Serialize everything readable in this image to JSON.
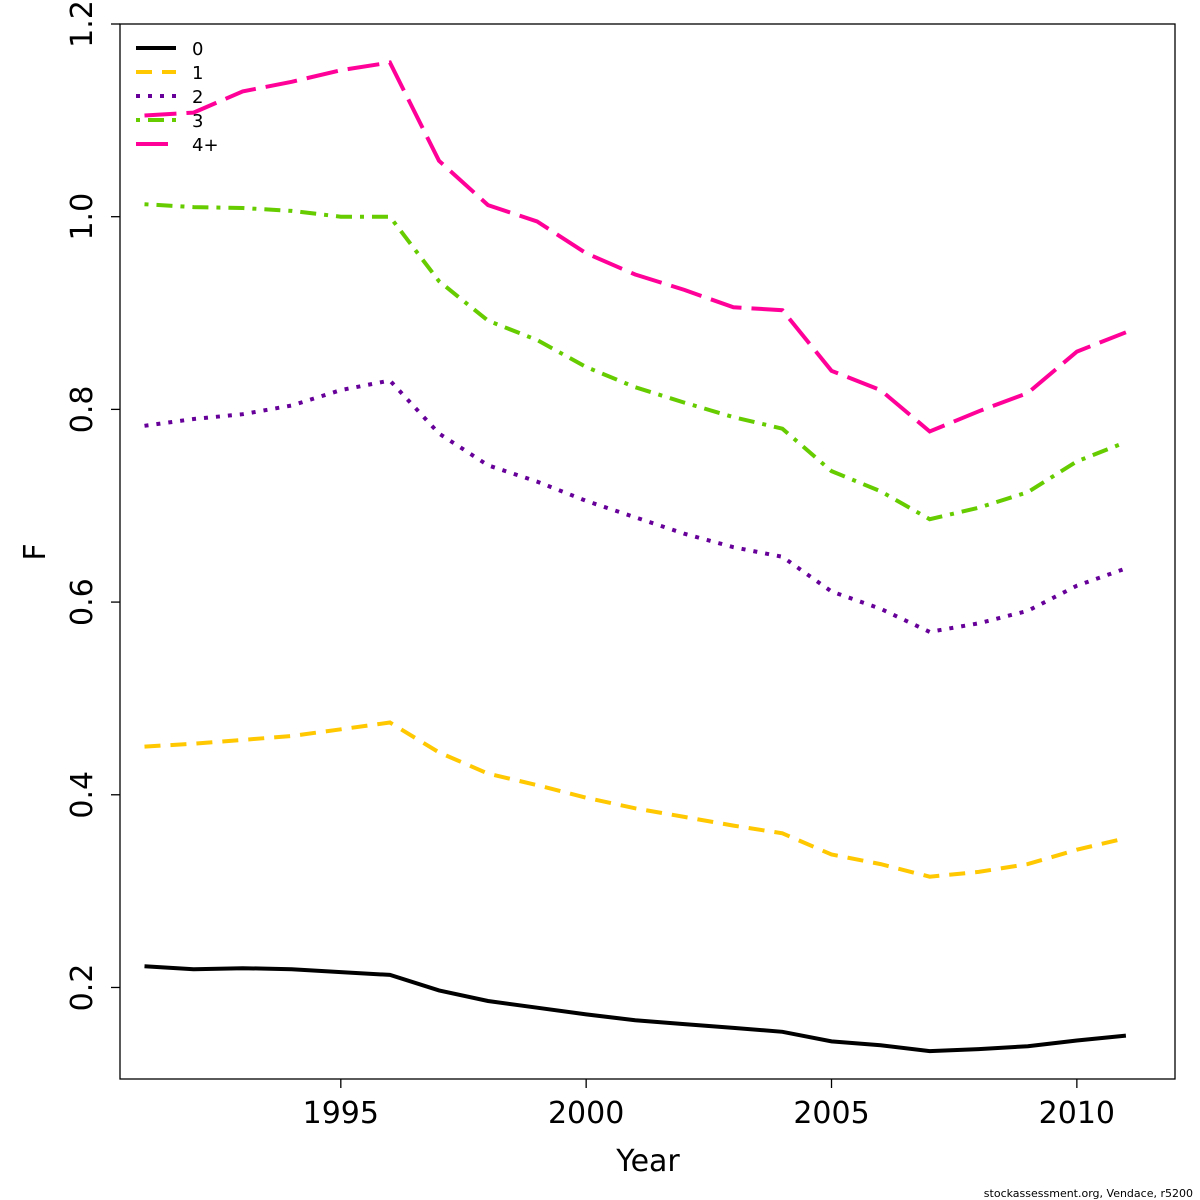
{
  "chart_data": {
    "type": "line",
    "xlabel": "Year",
    "ylabel": "F",
    "xlim": [
      1990.5,
      2012.0
    ],
    "ylim": [
      0.105,
      1.2
    ],
    "x_ticks": [
      1995,
      2000,
      2005,
      2010
    ],
    "y_ticks": [
      0.2,
      0.4,
      0.6,
      0.8,
      1.0,
      1.2
    ],
    "x_tick_labels": [
      "1995",
      "2000",
      "2005",
      "2010"
    ],
    "y_tick_labels": [
      "0.2",
      "0.4",
      "0.6",
      "0.8",
      "1.0",
      "1.2"
    ],
    "grid": false,
    "legend_position": "top-left",
    "x": [
      1991,
      1992,
      1993,
      1994,
      1995,
      1996,
      1997,
      1998,
      1999,
      2000,
      2001,
      2002,
      2003,
      2004,
      2005,
      2006,
      2007,
      2008,
      2009,
      2010,
      2011
    ],
    "series": [
      {
        "name": "0",
        "color": "#000000",
        "dash": "solid",
        "values": [
          0.222,
          0.219,
          0.22,
          0.219,
          0.216,
          0.213,
          0.197,
          0.186,
          0.179,
          0.172,
          0.166,
          0.162,
          0.158,
          0.154,
          0.144,
          0.14,
          0.134,
          0.136,
          0.139,
          0.145,
          0.15
        ]
      },
      {
        "name": "1",
        "color": "#FFC800",
        "dash": "dashed",
        "values": [
          0.45,
          0.453,
          0.457,
          0.461,
          0.468,
          0.475,
          0.444,
          0.422,
          0.41,
          0.397,
          0.386,
          0.377,
          0.368,
          0.36,
          0.338,
          0.328,
          0.315,
          0.32,
          0.328,
          0.343,
          0.355
        ]
      },
      {
        "name": "2",
        "color": "#660099",
        "dash": "dotted",
        "values": [
          0.783,
          0.79,
          0.795,
          0.804,
          0.82,
          0.83,
          0.775,
          0.742,
          0.725,
          0.705,
          0.688,
          0.671,
          0.657,
          0.647,
          0.611,
          0.593,
          0.569,
          0.578,
          0.591,
          0.617,
          0.635
        ]
      },
      {
        "name": "3",
        "color": "#66CC00",
        "dash": "dotdash",
        "values": [
          1.013,
          1.01,
          1.009,
          1.006,
          1.0,
          1.0,
          0.933,
          0.892,
          0.872,
          0.844,
          0.823,
          0.807,
          0.792,
          0.78,
          0.736,
          0.715,
          0.686,
          0.698,
          0.714,
          0.746,
          0.766
        ]
      },
      {
        "name": "4+",
        "color": "#FF0099",
        "dash": "longdash",
        "values": [
          1.105,
          1.108,
          1.13,
          1.14,
          1.152,
          1.16,
          1.058,
          1.012,
          0.995,
          0.962,
          0.94,
          0.924,
          0.906,
          0.903,
          0.84,
          0.82,
          0.777,
          0.798,
          0.817,
          0.86,
          0.88
        ]
      }
    ]
  },
  "footer": "stockassessment.org, Vendace, r5200"
}
